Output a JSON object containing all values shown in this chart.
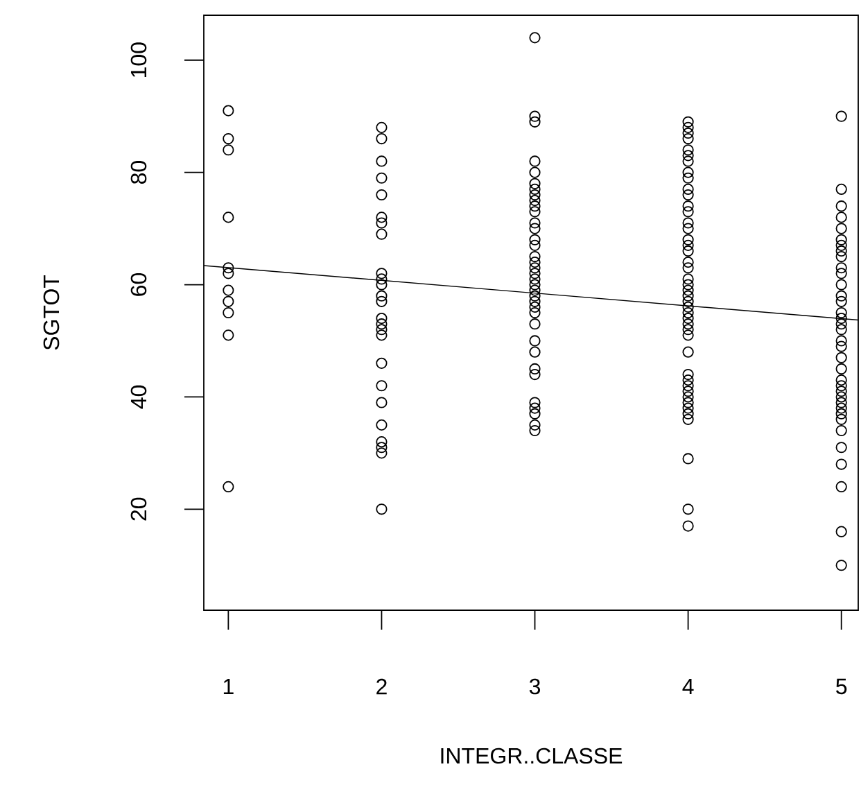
{
  "chart_data": {
    "type": "scatter",
    "xlabel": "INTEGR..CLASSE",
    "ylabel": "SGTOT",
    "xlim": [
      0.84,
      5.11
    ],
    "ylim": [
      2,
      108
    ],
    "xticks": [
      1,
      2,
      3,
      4,
      5
    ],
    "yticks": [
      20,
      40,
      60,
      80,
      100
    ],
    "grid": false,
    "marker": "circle",
    "series": [
      {
        "color": "#000000",
        "x": [
          1,
          1,
          1,
          1,
          1,
          1,
          1,
          1,
          1,
          1,
          1,
          2,
          2,
          2,
          2,
          2,
          2,
          2,
          2,
          2,
          2,
          2,
          2,
          2,
          2,
          2,
          2,
          2,
          2,
          2,
          2,
          2,
          2,
          2,
          2,
          2,
          3,
          3,
          3,
          3,
          3,
          3,
          3,
          3,
          3,
          3,
          3,
          3,
          3,
          3,
          3,
          3,
          3,
          3,
          3,
          3,
          3,
          3,
          3,
          3,
          3,
          3,
          3,
          3,
          3,
          3,
          3,
          3,
          3,
          3,
          3,
          3,
          4,
          4,
          4,
          4,
          4,
          4,
          4,
          4,
          4,
          4,
          4,
          4,
          4,
          4,
          4,
          4,
          4,
          4,
          4,
          4,
          4,
          4,
          4,
          4,
          4,
          4,
          4,
          4,
          4,
          4,
          4,
          4,
          4,
          4,
          4,
          4,
          4,
          4,
          4,
          4,
          4,
          4,
          4,
          4,
          5,
          5,
          5,
          5,
          5,
          5,
          5,
          5,
          5,
          5,
          5,
          5,
          5,
          5,
          5,
          5,
          5,
          5,
          5,
          5,
          5,
          5,
          5,
          5,
          5,
          5,
          5,
          5,
          5,
          5,
          5,
          5,
          5,
          5,
          5,
          5
        ],
        "values": [
          91,
          86,
          84,
          72,
          63,
          62,
          59,
          57,
          55,
          51,
          24,
          88,
          86,
          82,
          79,
          76,
          72,
          71,
          69,
          62,
          61,
          60,
          58,
          57,
          54,
          53,
          52,
          51,
          46,
          42,
          39,
          35,
          32,
          31,
          30,
          20,
          104,
          90,
          89,
          82,
          80,
          78,
          77,
          76,
          75,
          74,
          73,
          71,
          70,
          68,
          67,
          65,
          64,
          63,
          62,
          61,
          60,
          59,
          58,
          57,
          56,
          55,
          53,
          50,
          48,
          45,
          44,
          39,
          38,
          37,
          35,
          34,
          89,
          88,
          87,
          86,
          84,
          83,
          82,
          80,
          79,
          77,
          76,
          74,
          73,
          71,
          70,
          68,
          67,
          66,
          64,
          63,
          61,
          60,
          59,
          58,
          57,
          56,
          55,
          54,
          53,
          52,
          51,
          48,
          44,
          43,
          42,
          41,
          40,
          39,
          38,
          37,
          36,
          29,
          20,
          17,
          90,
          77,
          74,
          72,
          70,
          68,
          67,
          66,
          65,
          63,
          62,
          60,
          58,
          57,
          55,
          54,
          53,
          52,
          50,
          49,
          47,
          45,
          43,
          42,
          41,
          40,
          39,
          38,
          37,
          36,
          34,
          31,
          28,
          24,
          16,
          10
        ]
      },
      {
        "type": "line",
        "color": "#000000",
        "marker": "none",
        "x": [
          0.84,
          5.11
        ],
        "values": [
          63.4,
          53.7
        ]
      }
    ]
  }
}
